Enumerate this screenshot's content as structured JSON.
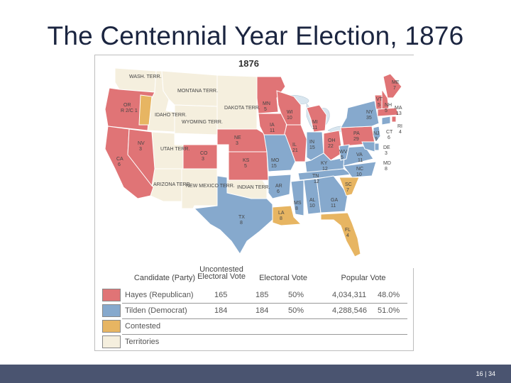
{
  "slide": {
    "title": "The Centennial Year Election, 1876",
    "page_number": "16 | 34"
  },
  "map": {
    "year_label": "1876",
    "colors": {
      "hayes": "#e07476",
      "tilden": "#86a9cd",
      "contested": "#e7b562",
      "territory": "#f5efde",
      "water": "#d9e6ef",
      "border": "#ffffff"
    },
    "labels": {
      "wash": "WASH. TERR.",
      "or": "OR",
      "or_votes": "R 2/C 1",
      "ca": "CA",
      "ca_votes": "6",
      "nv": "NV",
      "nv_votes": "3",
      "idaho": "IDAHO TERR.",
      "montana": "MONTANA TERR.",
      "wyoming": "WYOMING TERR.",
      "dakota": "DAKOTA TERR.",
      "utah": "UTAH TERR.",
      "arizona": "ARIZONA TERR.",
      "newmexico": "NEW MEXICO TERR.",
      "indian": "INDIAN TERR.",
      "co": "CO",
      "co_votes": "3",
      "ne": "NE",
      "ne_votes": "3",
      "ks": "KS",
      "ks_votes": "5",
      "mn": "MN",
      "mn_votes": "5",
      "ia": "IA",
      "ia_votes": "11",
      "mo": "MO",
      "mo_votes": "15",
      "wi": "WI",
      "wi_votes": "10",
      "il": "IL",
      "il_votes": "21",
      "mi": "MI",
      "mi_votes": "11",
      "in": "IN",
      "in_votes": "15",
      "oh": "OH",
      "oh_votes": "22",
      "ky": "KY",
      "ky_votes": "12",
      "tn": "TN",
      "tn_votes": "12",
      "ar": "AR",
      "ar_votes": "6",
      "tx": "TX",
      "tx_votes": "8",
      "la": "LA",
      "la_votes": "8",
      "ms": "MS",
      "ms_votes": "8",
      "al": "AL",
      "al_votes": "10",
      "ga": "GA",
      "ga_votes": "11",
      "fl": "FL",
      "fl_votes": "4",
      "sc": "SC",
      "sc_votes": "7",
      "nc": "NC",
      "nc_votes": "10",
      "va": "VA",
      "va_votes": "11",
      "wv": "WV",
      "wv_votes": "5",
      "pa": "PA",
      "pa_votes": "29",
      "ny": "NY",
      "ny_votes": "35",
      "nj": "NJ",
      "nj_votes": "9",
      "de": "DE",
      "de_votes": "3",
      "md": "MD",
      "md_votes": "8",
      "vt": "VT",
      "vt_votes": "5",
      "nh": "NH",
      "nh_votes": "5",
      "ma": "MA",
      "ma_votes": "13",
      "me": "ME",
      "me_votes": "7",
      "ri": "RI",
      "ri_votes": "4",
      "ct": "CT",
      "ct_votes": "6"
    }
  },
  "legend": {
    "headers": {
      "candidate": "Candidate (Party)",
      "uncontested": "Uncontested Electoral Vote",
      "electoral": "Electoral Vote",
      "popular": "Popular Vote"
    },
    "rows": [
      {
        "label": "Hayes (Republican)",
        "uncontested": "165",
        "electoral": "185",
        "electoral_pct": "50%",
        "popular": "4,034,311",
        "popular_pct": "48.0%"
      },
      {
        "label": "Tilden (Democrat)",
        "uncontested": "184",
        "electoral": "184",
        "electoral_pct": "50%",
        "popular": "4,288,546",
        "popular_pct": "51.0%"
      },
      {
        "label": "Contested"
      },
      {
        "label": "Territories"
      }
    ]
  }
}
